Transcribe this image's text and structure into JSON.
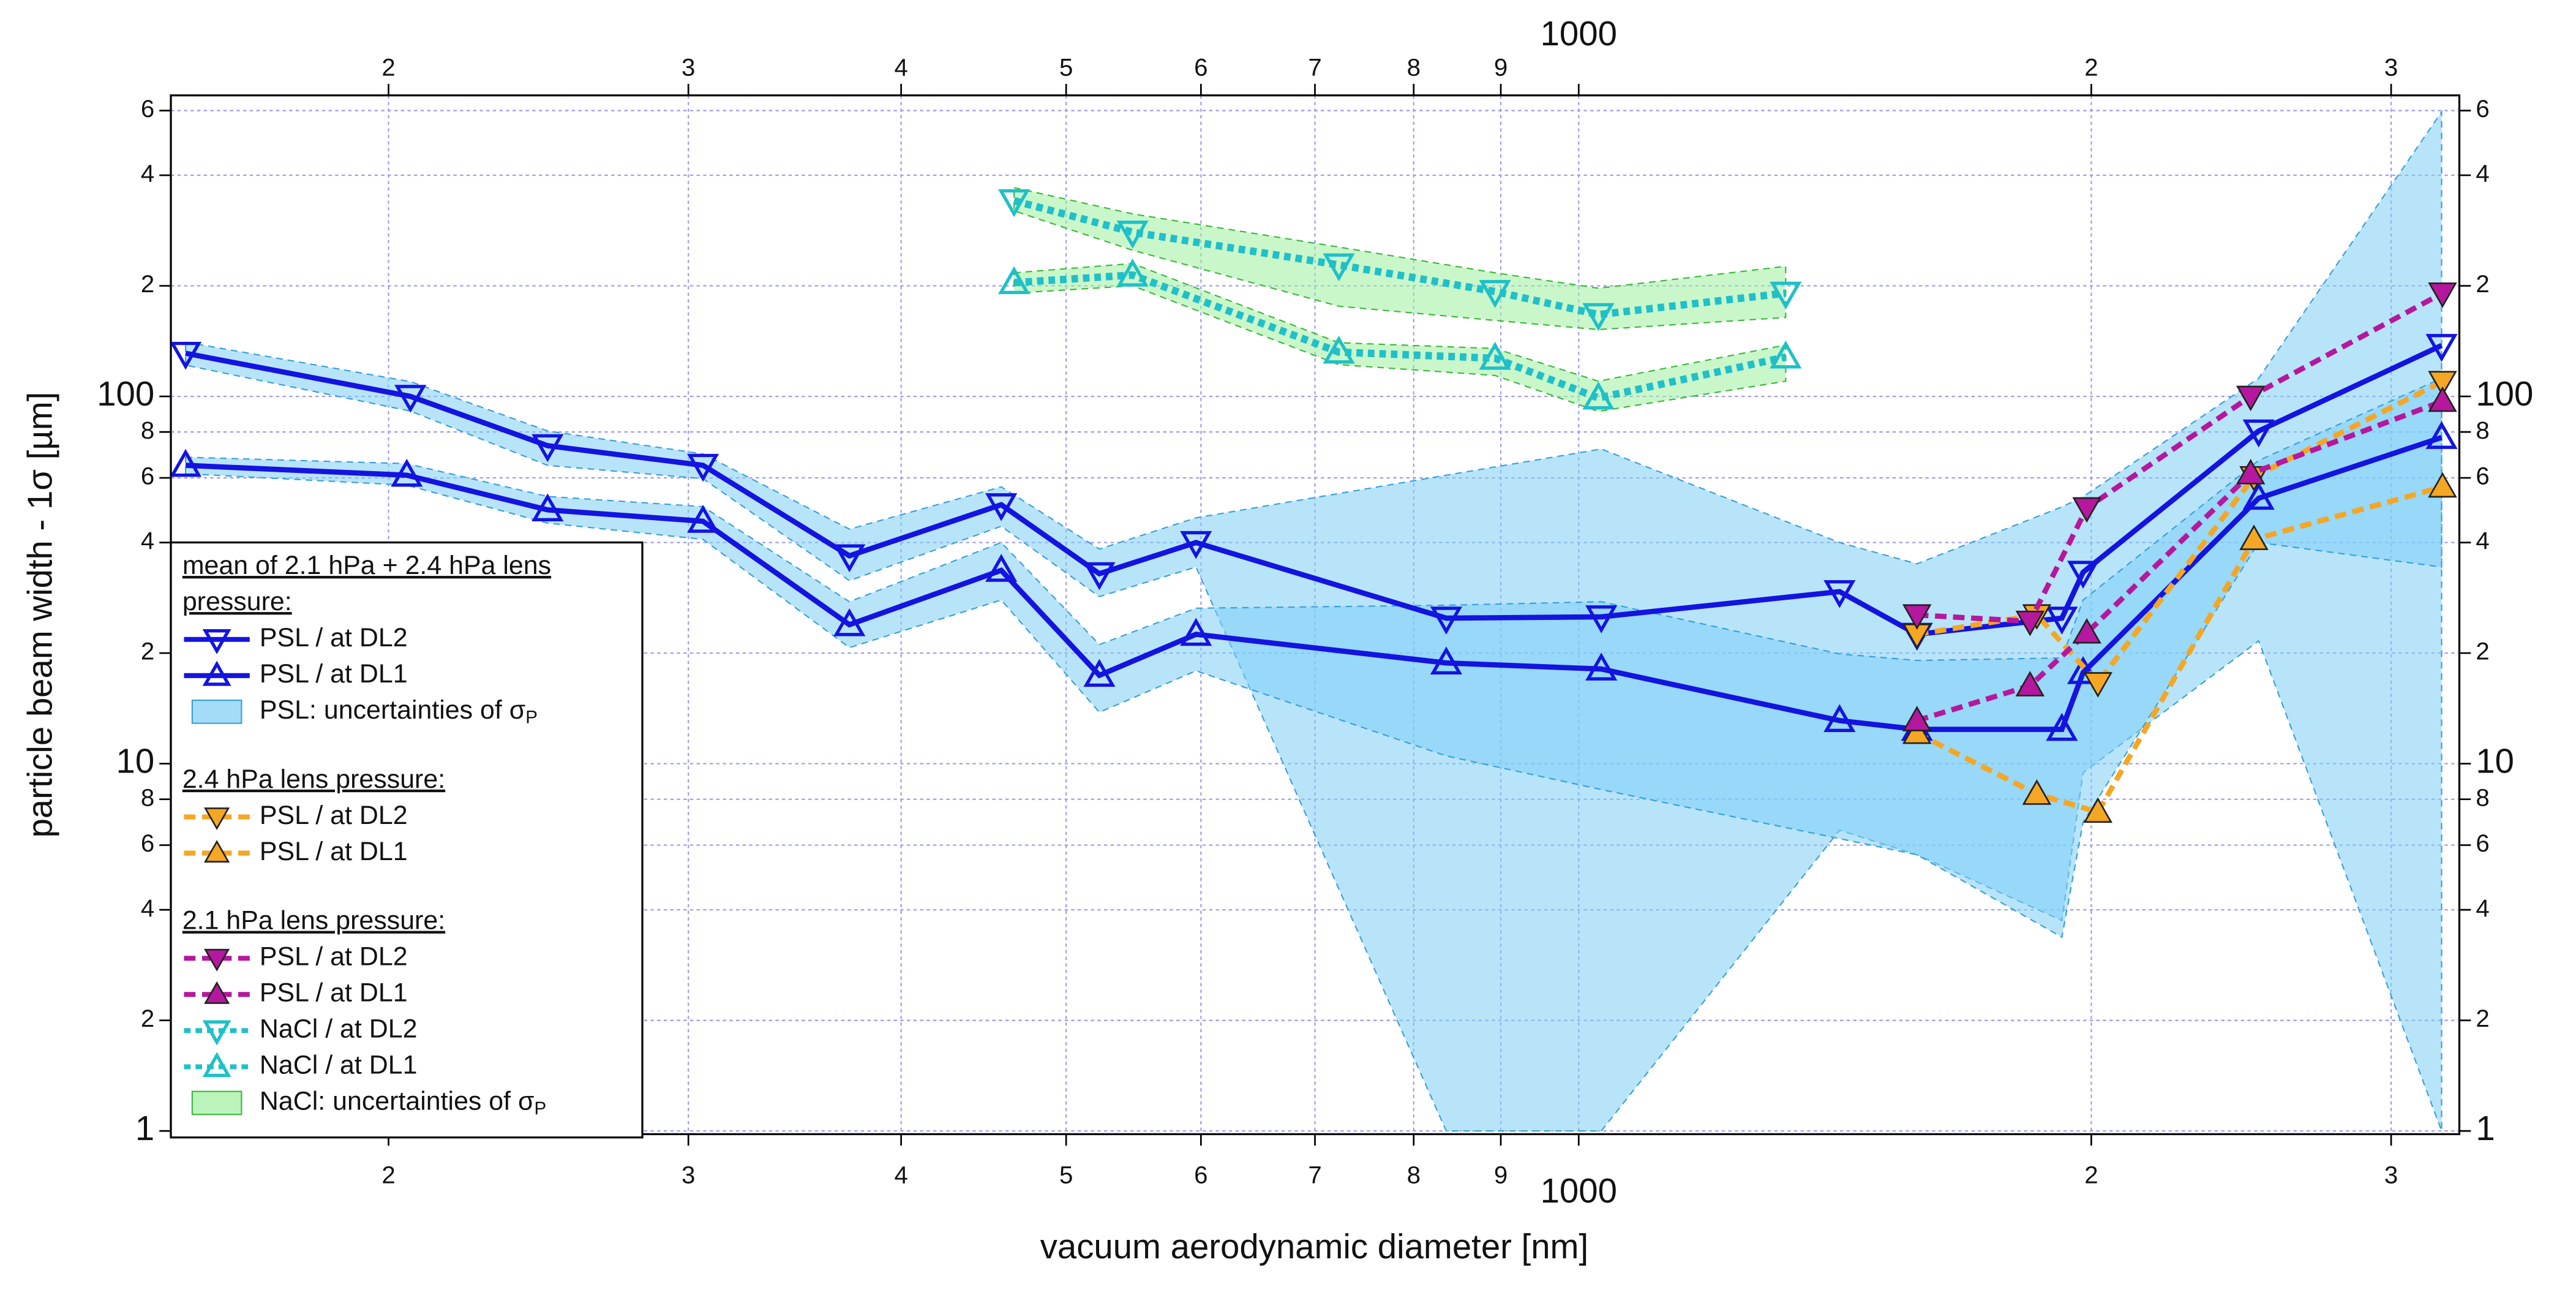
{
  "chart_data": {
    "type": "line",
    "xlabel": "vacuum aerodynamic diameter [nm]",
    "ylabel": "particle beam width - 1σ [µm]",
    "xlog": true,
    "ylog": true,
    "grid": true,
    "xlim": [
      149,
      3290
    ],
    "ylim": [
      0.98,
      660
    ],
    "xticks": [
      {
        "value": 200,
        "label": "2"
      },
      {
        "value": 300,
        "label": "3"
      },
      {
        "value": 400,
        "label": "4"
      },
      {
        "value": 500,
        "label": "5"
      },
      {
        "value": 600,
        "label": "6"
      },
      {
        "value": 700,
        "label": "7"
      },
      {
        "value": 800,
        "label": "8"
      },
      {
        "value": 900,
        "label": "9"
      },
      1000,
      {
        "value": 2000,
        "label": "2"
      },
      {
        "value": 3000,
        "label": "3"
      }
    ],
    "yticks": [
      1,
      2,
      4,
      6,
      8,
      10,
      {
        "value": 20,
        "label": "2"
      },
      {
        "value": 40,
        "label": "4"
      },
      {
        "value": 60,
        "label": "6"
      },
      {
        "value": 80,
        "label": "8"
      },
      100,
      {
        "value": 200,
        "label": "2"
      },
      {
        "value": 400,
        "label": "4"
      },
      {
        "value": 600,
        "label": "6"
      }
    ],
    "groups": [
      {
        "title": [
          "mean of 2.1 hPa + 2.4 hPa lens",
          "pressure:"
        ],
        "series": [
          {
            "name": "PSL / at DL2",
            "color": "#1414e0",
            "marker": "down",
            "filled": false,
            "line": "solid",
            "x": [
              152,
              206,
              248,
              306,
              373,
              458,
              523,
              596,
              836,
              1031,
              1423,
              1580,
              1922,
              1978,
              2508,
              3212
            ],
            "values": [
              131,
              100,
              73.4,
              64.9,
              36.8,
              50.7,
              32.9,
              40.0,
              24.9,
              25.1,
              29.4,
              22.5,
              24.9,
              33.2,
              80.5,
              137.6
            ]
          },
          {
            "name": "PSL / at DL1",
            "color": "#1414e0",
            "marker": "up",
            "filled": false,
            "line": "solid",
            "x": [
              152,
              205,
              248,
              306,
              373,
              458,
              523,
              596,
              836,
              1031,
              1423,
              1580,
              1922,
              1978,
              2508,
              3212
            ],
            "values": [
              64.9,
              61.0,
              49.1,
              45.7,
              23.9,
              33.6,
              17.4,
              22.5,
              18.8,
              18.1,
              13.1,
              12.4,
              12.4,
              17.7,
              52.8,
              77.3
            ]
          },
          {
            "name": "PSL: uncertainties of σ",
            "name_sub": "P",
            "color": "#7dcdf5",
            "band": true,
            "areas": [
              {
                "x": [
                  152,
                  206,
                  248,
                  306,
                  373,
                  458,
                  523,
                  596,
                  836,
                  1031,
                  1423,
                  1580,
                  1922,
                  1978,
                  2508,
                  3212
                ],
                "upper": [
                  140.5,
                  109.7,
                  80.5,
                  69.7,
                  43.5,
                  56.7,
                  38.4,
                  46.7,
                  61,
                  71.9,
                  40,
                  35,
                  50,
                  53.3,
                  112,
                  595
                ],
                "lower": [
                  121.6,
                  91.2,
                  64.9,
                  59.7,
                  31.5,
                  44.3,
                  28.5,
                  34.3,
                  1,
                  1,
                  6.59,
                  5.65,
                  3.74,
                  9.45,
                  21.6,
                  1
                ]
              },
              {
                "x": [
                  152,
                  205,
                  248,
                  306,
                  373,
                  458,
                  523,
                  596,
                  836,
                  1031,
                  1423,
                  1580,
                  1922,
                  1978,
                  2508,
                  3212
                ],
                "upper": [
                  68.3,
                  65.6,
                  53.4,
                  50.1,
                  27.6,
                  40,
                  21.1,
                  26.5,
                  27,
                  27.6,
                  19.9,
                  19.1,
                  19.4,
                  27.9,
                  66.9,
                  112
                ],
                "lower": [
                  61.6,
                  57.3,
                  45.2,
                  40.8,
                  20.7,
                  27.9,
                  13.8,
                  17.9,
                  10.5,
                  8.5,
                  6.25,
                  5.65,
                  3.37,
                  6.93,
                  40,
                  34.3
                ]
              }
            ]
          }
        ]
      },
      {
        "title": [
          "2.4 hPa lens pressure:"
        ],
        "series": [
          {
            "name": "PSL / at DL2",
            "color": "#f5a623",
            "marker": "down",
            "filled": true,
            "line": "dashed",
            "x": [
              1580,
              1858,
              2018,
              2492,
              3216
            ],
            "values": [
              22.5,
              25.4,
              16.6,
              60.4,
              109.7
            ]
          },
          {
            "name": "PSL / at DL1",
            "color": "#f5a623",
            "marker": "up",
            "filled": true,
            "line": "dashed",
            "x": [
              1580,
              1858,
              2018,
              2492,
              3216
            ],
            "values": [
              12.1,
              8.26,
              7.38,
              40.8,
              56.7
            ]
          }
        ]
      },
      {
        "title": [
          "2.1 hPa lens pressure:"
        ],
        "series": [
          {
            "name": "PSL / at DL2",
            "color": "#b5179e",
            "marker": "down",
            "filled": true,
            "line": "dashed",
            "x": [
              1580,
              1841,
              1988,
              2481,
              3216
            ],
            "values": [
              25.4,
              24.4,
              49.7,
              100,
              191
            ]
          },
          {
            "name": "PSL / at DL1",
            "color": "#b5179e",
            "marker": "up",
            "filled": true,
            "line": "dashed",
            "x": [
              1580,
              1841,
              1988,
              2481,
              3216
            ],
            "values": [
              13.1,
              16.3,
              22.7,
              61.6,
              97
            ]
          },
          {
            "name": "NaCl / at DL2",
            "color": "#1fc0c8",
            "marker": "down",
            "filled": false,
            "line": "dotted",
            "x": [
              466,
              547,
              723,
              893,
              1027,
              1323
            ],
            "values": [
              341,
              280,
              228,
              193,
              167,
              191
            ]
          },
          {
            "name": "NaCl / at DL1",
            "color": "#1fc0c8",
            "marker": "up",
            "filled": false,
            "line": "dotted",
            "x": [
              466,
              547,
              723,
              893,
              1027,
              1323
            ],
            "values": [
              204,
              214,
              132,
              127,
              99,
              128
            ]
          },
          {
            "name": "NaCl: uncertainties of σ",
            "name_sub": "P",
            "color": "#9ef09e",
            "band": true,
            "areas": [
              {
                "x": [
                  466,
                  547,
                  723,
                  893,
                  1027,
                  1323
                ],
                "upper": [
                  370,
                  314,
                  255,
                  217,
                  197,
                  226
                ],
                "lower": [
                  320,
                  250,
                  176,
                  161,
                  152,
                  164
                ]
              },
              {
                "x": [
                  466,
                  547,
                  723,
                  893,
                  1027,
                  1323
                ],
                "upper": [
                  217,
                  230,
                  140,
                  135,
                  110,
                  138
                ],
                "lower": [
                  191,
                  200,
                  122,
                  114,
                  91,
                  110
                ]
              }
            ]
          }
        ]
      }
    ]
  }
}
